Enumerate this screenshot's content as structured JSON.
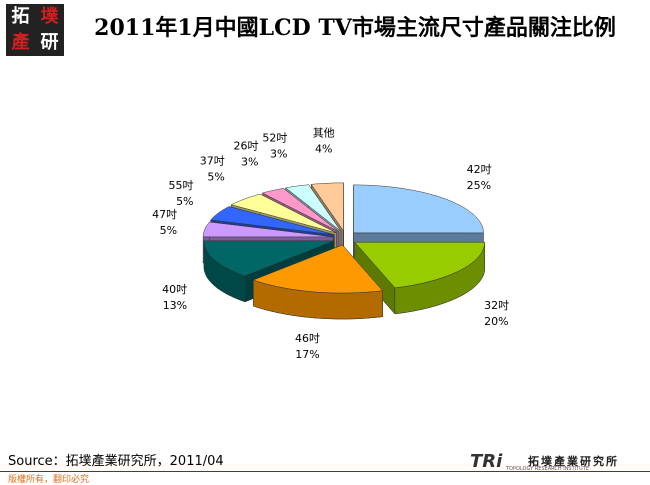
{
  "chart_data": {
    "type": "pie",
    "title": "2011年1月中國LCD TV市場主流尺寸產品關注比例",
    "categories": [
      "42吋",
      "32吋",
      "46吋",
      "40吋",
      "47吋",
      "55吋",
      "37吋",
      "26吋",
      "52吋",
      "其他"
    ],
    "values": [
      25,
      20,
      17,
      13,
      5,
      5,
      5,
      3,
      3,
      4
    ],
    "value_labels": [
      "25%",
      "20%",
      "17%",
      "13%",
      "5%",
      "5%",
      "5%",
      "3%",
      "3%",
      "4%"
    ],
    "colors": [
      "#99ccff",
      "#99cc00",
      "#ff9900",
      "#006666",
      "#cc99ff",
      "#3366ff",
      "#ffff99",
      "#ff99cc",
      "#ccffff",
      "#ffcc99"
    ],
    "source": "Source：拓墣產業研究所，2011/04"
  },
  "logo": {
    "top_left": [
      "拓",
      "墣",
      "產",
      "研"
    ],
    "bottom_right_brand": "TRi",
    "bottom_right_name": "拓墣產業研究所",
    "bottom_right_english": "TOPOLOGY RESEARCH INSTITUTE"
  },
  "footer": "版權所有，翻印必究"
}
